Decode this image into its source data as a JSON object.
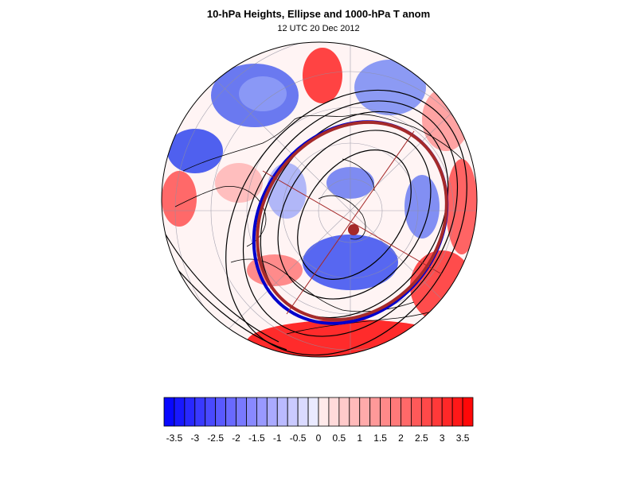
{
  "header": {
    "title": "10-hPa Heights, Ellipse and 1000-hPa T anom",
    "subtitle": "12 UTC 20 Dec 2012"
  },
  "colorbar": {
    "min": -3.75,
    "max": 3.75,
    "step": 0.25,
    "tick_labels": [
      "-3.5",
      "-3",
      "-2.5",
      "-2",
      "-1.5",
      "-1",
      "-0.5",
      "0",
      "0.5",
      "1",
      "1.5",
      "2",
      "2.5",
      "3",
      "3.5"
    ],
    "tick_values": [
      -3.5,
      -3,
      -2.5,
      -2,
      -1.5,
      -1,
      -0.5,
      0,
      0.5,
      1,
      1.5,
      2,
      2.5,
      3,
      3.5
    ],
    "negative_color": "#0000ff",
    "positive_color": "#ff0000",
    "neutral_color": "#ffffff"
  },
  "map": {
    "projection": "north-polar-stereographic",
    "ellipse_color": "#a52a2a",
    "ellipse_outline_color": "#0000cc",
    "contour_color": "#000000"
  }
}
